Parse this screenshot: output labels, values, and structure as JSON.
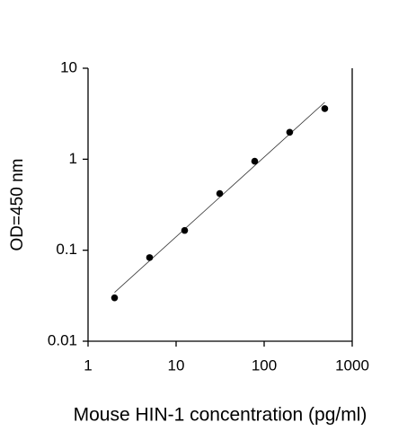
{
  "chart_data": {
    "type": "scatter",
    "x_label": "Mouse HIN-1 concentration (pg/ml)",
    "y_label": "OD=450 nm",
    "x": [
      2,
      5,
      12.5,
      31.3,
      78.1,
      195,
      488
    ],
    "series": [
      {
        "color": "#000000",
        "values": [
          0.03,
          0.083,
          0.165,
          0.42,
          0.95,
          1.98,
          3.6
        ]
      }
    ],
    "log_x": true,
    "log_y": true,
    "trendline": true,
    "xlim": [
      1,
      1000
    ],
    "ylim": [
      0.01,
      10
    ],
    "xticks": [
      1,
      10,
      100,
      1000
    ],
    "yticks": [
      0.01,
      0.1,
      1,
      10
    ]
  }
}
